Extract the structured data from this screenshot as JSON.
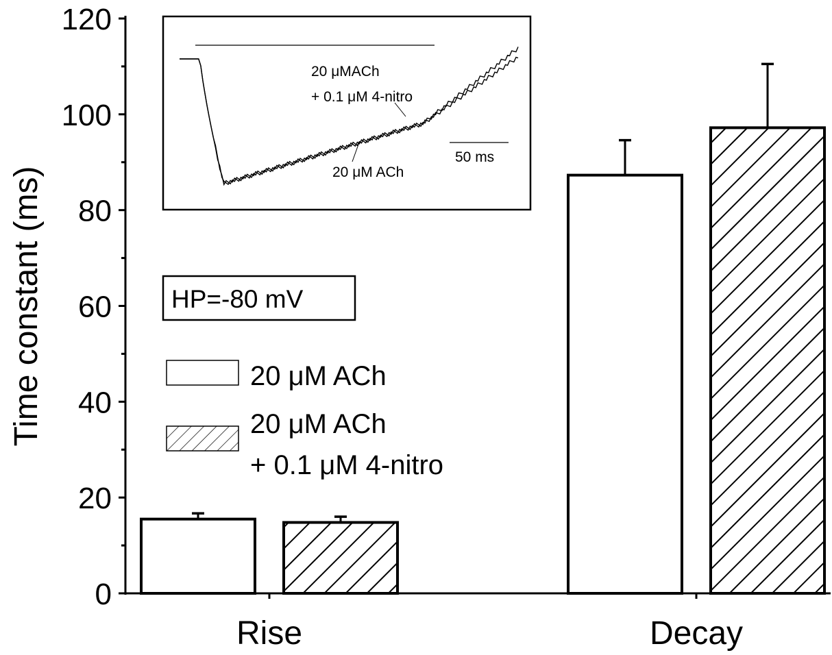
{
  "chart_data": {
    "type": "bar",
    "ylabel": "Time constant (ms)",
    "ylim": [
      0,
      120
    ],
    "yticks": [
      0,
      20,
      40,
      60,
      80,
      100,
      120
    ],
    "categories": [
      "Rise",
      "Decay"
    ],
    "series": [
      {
        "name": "20 μM ACh",
        "fill": "open",
        "values": [
          15.5,
          87.3
        ],
        "errors": [
          1.2,
          7.3
        ]
      },
      {
        "name": "20 μM ACh + 0.1 μM 4-nitro",
        "fill": "hatched",
        "values": [
          14.8,
          97.2
        ],
        "errors": [
          1.2,
          13.3
        ]
      }
    ],
    "legend": {
      "position": "center-left",
      "entries": [
        {
          "lines": [
            "20 μM ACh"
          ]
        },
        {
          "lines": [
            "20 μM ACh",
            "+ 0.1 μM 4-nitro"
          ]
        }
      ]
    },
    "annotations": {
      "holding_potential": "HP=-80 mV"
    },
    "inset": {
      "type": "trace",
      "position": "top-left",
      "labels": {
        "treated": [
          "20 μMACh",
          "+ 0.1  μM 4-nitro"
        ],
        "control": "20 μM ACh"
      },
      "scale_bar": "50 ms"
    }
  }
}
